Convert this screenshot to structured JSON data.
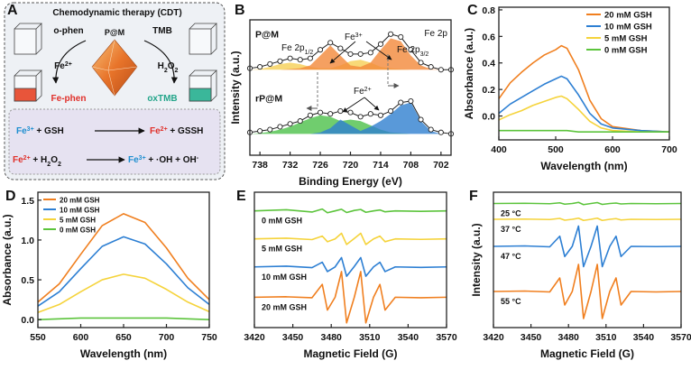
{
  "diagram": {
    "panel_label": "A",
    "title": "Chemodynamic therapy (CDT)",
    "left_reagent": "o-phen",
    "center": "P@M",
    "right_reagent": "TMB",
    "left_ion": [
      "Fe",
      {
        "sup": "2+"
      }
    ],
    "right_oxidant": [
      "H",
      {
        "sub": "2"
      },
      "O",
      {
        "sub": "2"
      }
    ],
    "left_product": "Fe-phen",
    "right_product": "oxTMB",
    "reactions": [
      {
        "left": [
          {
            "text": "Fe",
            "color": "#1f8fd0"
          },
          {
            "sup": "3+",
            "color": "#1f8fd0"
          },
          " + GSH"
        ],
        "right": [
          {
            "text": "Fe",
            "color": "#e0302a"
          },
          {
            "sup": "2+",
            "color": "#e0302a"
          },
          " + GSSH"
        ]
      },
      {
        "left": [
          {
            "text": "Fe",
            "color": "#e0302a"
          },
          {
            "sup": "2+",
            "color": "#e0302a"
          },
          " + H",
          {
            "sub": "2"
          },
          "O",
          {
            "sub": "2"
          }
        ],
        "right": [
          {
            "text": "Fe",
            "color": "#1f8fd0"
          },
          {
            "sup": "3+",
            "color": "#1f8fd0"
          },
          " + ·OH + OH",
          {
            "sup": "-"
          }
        ]
      }
    ]
  },
  "chart_data": [
    {
      "type": "line",
      "panel_label": "B",
      "xlabel": "Binding Energy (eV)",
      "ylabel": "Intensity (a.u.)",
      "x": [
        740,
        738,
        736,
        734,
        732,
        730,
        728,
        726,
        724,
        722,
        720,
        718,
        716,
        714,
        712,
        710,
        708,
        706,
        704,
        702,
        700
      ],
      "xlim": [
        740,
        700
      ],
      "xticks": [
        738,
        732,
        726,
        720,
        714,
        708,
        702
      ],
      "ylim": [
        0.5,
        10
      ],
      "trace_labels": "above",
      "components": [
        {
          "color": "#f6cf55",
          "values": [
            6.5,
            6.55,
            6.7,
            6.9,
            7.0,
            6.9,
            6.7,
            6.6,
            6.6,
            6.8,
            7.1,
            7.2,
            7.0,
            6.7,
            6.6,
            6.55,
            6.5,
            6.5,
            6.5,
            6.5,
            6.5
          ]
        },
        {
          "color": "#f2883a",
          "values": [
            6.5,
            6.5,
            6.5,
            6.5,
            6.55,
            6.6,
            6.8,
            7.5,
            8.2,
            7.5,
            6.8,
            6.7,
            7.0,
            7.9,
            8.7,
            8.5,
            7.5,
            6.8,
            6.55,
            6.5,
            6.5
          ]
        },
        {
          "color": "#4cc04a",
          "values": [
            2,
            2.05,
            2.15,
            2.3,
            2.5,
            2.8,
            3.1,
            3.3,
            3.2,
            2.9,
            3.0,
            2.9,
            2.6,
            2.3,
            2.1,
            2.05,
            2,
            2,
            2,
            2,
            2
          ]
        },
        {
          "color": "#2f7fd0",
          "values": [
            2,
            2,
            2,
            2,
            2,
            2,
            2,
            2.1,
            2.4,
            3.0,
            2.6,
            2.2,
            2.5,
            2.9,
            3.4,
            4.0,
            4.2,
            2.9,
            2.2,
            2.0,
            2
          ]
        }
      ],
      "series": [
        {
          "name": "P@M",
          "color": "#222222",
          "marker": "circle",
          "values": [
            6.6,
            6.7,
            6.9,
            7.1,
            7.3,
            7.2,
            7.3,
            7.9,
            8.4,
            8.0,
            7.6,
            7.6,
            7.7,
            8.3,
            9.0,
            8.8,
            7.9,
            7.0,
            6.7,
            6.5,
            6.5
          ]
        },
        {
          "name": "rP@M",
          "color": "#222222",
          "marker": "circle",
          "values": [
            2.1,
            2.2,
            2.3,
            2.5,
            2.7,
            2.9,
            3.3,
            3.5,
            3.4,
            3.6,
            3.5,
            3.2,
            3.4,
            3.3,
            3.6,
            4.2,
            4.3,
            3.0,
            2.3,
            2.1,
            2.0
          ]
        }
      ],
      "annotations": [
        [
          "Fe 2p"
        ],
        [
          "Fe 2p",
          {
            "sub": "1/2"
          }
        ],
        [
          "Fe",
          {
            "sup": "3+"
          }
        ],
        [
          "Fe 2p",
          {
            "sub": "3/2"
          }
        ],
        [
          "Fe",
          {
            "sup": "2+"
          }
        ]
      ]
    },
    {
      "type": "line",
      "panel_label": "C",
      "xlabel": "Wavelength (nm)",
      "ylabel": "Absorbance (a.u.)",
      "x": [
        400,
        420,
        440,
        460,
        480,
        500,
        510,
        520,
        540,
        560,
        580,
        600,
        650,
        700
      ],
      "xlim": [
        400,
        700
      ],
      "xticks": [
        400,
        500,
        600,
        700
      ],
      "ylim": [
        -0.18,
        0.82
      ],
      "yticks": [
        {
          "value": 0,
          "label": "0.0"
        },
        {
          "value": 0.2,
          "label": "0.2"
        },
        {
          "value": 0.4,
          "label": "0.4"
        },
        {
          "value": 0.6,
          "label": "0.6"
        },
        {
          "value": 0.8,
          "label": "0.8"
        }
      ],
      "legend": "upper right",
      "series": [
        {
          "name": "20 mM GSH",
          "color": "#f07f1f",
          "values": [
            0.13,
            0.25,
            0.33,
            0.4,
            0.46,
            0.5,
            0.53,
            0.51,
            0.35,
            0.12,
            -0.02,
            -0.08,
            -0.11,
            -0.12
          ]
        },
        {
          "name": "10 mM GSH",
          "color": "#2d7fd3",
          "values": [
            0.02,
            0.09,
            0.14,
            0.19,
            0.24,
            0.28,
            0.3,
            0.28,
            0.16,
            0.02,
            -0.06,
            -0.09,
            -0.11,
            -0.12
          ]
        },
        {
          "name": "5 mM GSH",
          "color": "#f5d33b",
          "values": [
            -0.03,
            0.01,
            0.04,
            0.08,
            0.11,
            0.14,
            0.15,
            0.13,
            0.05,
            -0.04,
            -0.09,
            -0.11,
            -0.12,
            -0.12
          ]
        },
        {
          "name": "0 mM GSH",
          "color": "#5cc43c",
          "values": [
            -0.11,
            -0.11,
            -0.11,
            -0.11,
            -0.11,
            -0.11,
            -0.11,
            -0.11,
            -0.12,
            -0.12,
            -0.12,
            -0.12,
            -0.12,
            -0.12
          ]
        }
      ]
    },
    {
      "type": "line",
      "panel_label": "D",
      "xlabel": "Wavelength (nm)",
      "ylabel": "Absorbance (a.u.)",
      "x": [
        550,
        575,
        600,
        625,
        650,
        675,
        700,
        725,
        750
      ],
      "xlim": [
        550,
        750
      ],
      "xticks": [
        550,
        600,
        650,
        700,
        750
      ],
      "ylim": [
        -0.1,
        1.6
      ],
      "yticks": [
        {
          "value": 0,
          "label": "0.0"
        },
        {
          "value": 0.5,
          "label": "0.5"
        },
        {
          "value": 1,
          "label": "1.0"
        },
        {
          "value": 1.5,
          "label": "1.5"
        }
      ],
      "legend": "upper left",
      "series": [
        {
          "name": "20 mM GSH",
          "color": "#f07f1f",
          "values": [
            0.22,
            0.45,
            0.82,
            1.18,
            1.33,
            1.22,
            0.9,
            0.52,
            0.25
          ]
        },
        {
          "name": "10 mM GSH",
          "color": "#2d7fd3",
          "values": [
            0.17,
            0.35,
            0.64,
            0.92,
            1.04,
            0.95,
            0.7,
            0.4,
            0.19
          ]
        },
        {
          "name": "5 mM GSH",
          "color": "#f5d33b",
          "values": [
            0.09,
            0.19,
            0.35,
            0.5,
            0.57,
            0.52,
            0.38,
            0.22,
            0.1
          ]
        },
        {
          "name": "0 mM GSH",
          "color": "#5cc43c",
          "values": [
            0.0,
            0.01,
            0.02,
            0.02,
            0.02,
            0.02,
            0.02,
            0.01,
            0.0
          ]
        }
      ]
    },
    {
      "type": "line",
      "panel_label": "E",
      "xlabel": "Magnetic Field (G)",
      "x": [
        3420,
        3445,
        3465,
        3473,
        3477,
        3483,
        3488,
        3492,
        3498,
        3503,
        3507,
        3513,
        3518,
        3522,
        3530,
        3550,
        3570
      ],
      "xlim": [
        3420,
        3570
      ],
      "xticks": [
        3420,
        3450,
        3480,
        3510,
        3540,
        3570
      ],
      "ylim": [
        -0.8,
        5
      ],
      "trace_labels": "below",
      "series": [
        {
          "name": "0 mM GSH",
          "color": "#5cc43c",
          "values": [
            4.2,
            4.25,
            4.15,
            4.28,
            4.12,
            4.2,
            4.27,
            4.13,
            4.22,
            4.26,
            4.14,
            4.2,
            4.24,
            4.16,
            4.2,
            4.18,
            4.2
          ]
        },
        {
          "name": "5 mM GSH",
          "color": "#f5d33b",
          "values": [
            3.0,
            3.03,
            2.97,
            3.12,
            2.88,
            3.0,
            3.24,
            2.76,
            3.02,
            3.24,
            2.76,
            3.0,
            3.12,
            2.88,
            3.0,
            2.98,
            3.0
          ]
        },
        {
          "name": "10 mM GSH",
          "color": "#2d7fd3",
          "values": [
            1.8,
            1.83,
            1.77,
            2.0,
            1.6,
            1.8,
            2.2,
            1.4,
            1.82,
            2.2,
            1.4,
            1.8,
            2.0,
            1.6,
            1.8,
            1.78,
            1.8
          ]
        },
        {
          "name": "20 mM GSH",
          "color": "#f07f1f",
          "values": [
            0.5,
            0.52,
            0.48,
            1.05,
            -0.05,
            0.5,
            1.6,
            -0.6,
            0.5,
            1.6,
            -0.6,
            0.5,
            1.05,
            -0.05,
            0.5,
            0.48,
            0.5
          ]
        }
      ]
    },
    {
      "type": "line",
      "panel_label": "F",
      "xlabel": "Magnetic Field (G)",
      "ylabel": "Intensity (a.u.)",
      "x": [
        3420,
        3445,
        3465,
        3473,
        3477,
        3483,
        3488,
        3492,
        3498,
        3503,
        3507,
        3513,
        3518,
        3522,
        3530,
        3550,
        3570
      ],
      "xlim": [
        3420,
        3570
      ],
      "xticks": [
        3420,
        3450,
        3480,
        3510,
        3540,
        3570
      ],
      "ylim": [
        -0.8,
        5.2
      ],
      "trace_labels": "below",
      "series": [
        {
          "name": "25 °C",
          "color": "#5cc43c",
          "values": [
            4.7,
            4.71,
            4.69,
            4.73,
            4.67,
            4.7,
            4.75,
            4.65,
            4.7,
            4.74,
            4.66,
            4.7,
            4.72,
            4.68,
            4.7,
            4.69,
            4.7
          ]
        },
        {
          "name": "37 °C",
          "color": "#f5d33b",
          "values": [
            4.0,
            4.01,
            3.99,
            4.04,
            3.96,
            4.0,
            4.05,
            3.95,
            4.0,
            4.05,
            3.95,
            4.0,
            4.03,
            3.97,
            4.0,
            3.99,
            4.0
          ]
        },
        {
          "name": "47 °C",
          "color": "#2d7fd3",
          "values": [
            2.8,
            2.82,
            2.78,
            3.25,
            2.35,
            2.8,
            3.7,
            1.9,
            2.8,
            3.7,
            1.9,
            2.8,
            3.25,
            2.35,
            2.8,
            2.79,
            2.8
          ]
        },
        {
          "name": "55 °C",
          "color": "#f07f1f",
          "values": [
            0.8,
            0.82,
            0.78,
            1.4,
            0.2,
            0.8,
            2.0,
            -0.4,
            0.8,
            2.0,
            -0.4,
            0.8,
            1.4,
            0.2,
            0.8,
            0.78,
            0.8
          ]
        }
      ]
    }
  ]
}
